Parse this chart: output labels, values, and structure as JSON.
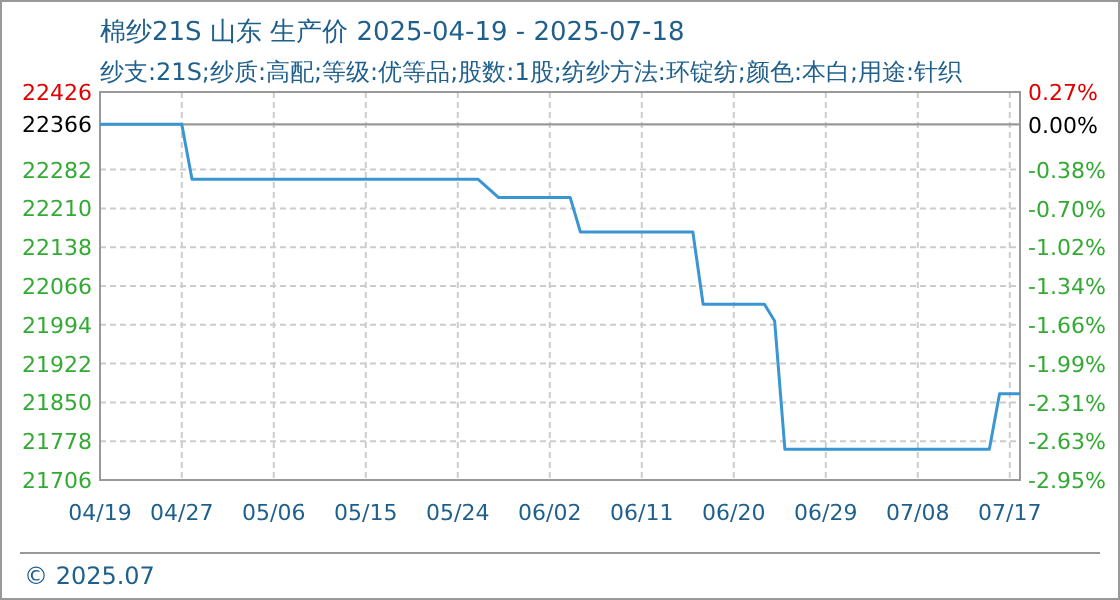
{
  "chart_data": {
    "type": "line",
    "title": "棉纱21S 山东 生产价 2025-04-19 - 2025-07-18",
    "subtitle": "纱支:21S;纱质:高配;等级:优等品;股数:1股;纺纱方法:环锭纺;颜色:本白;用途:针织",
    "series": [
      {
        "color": "#3a96d2",
        "x": [
          "2025-04-19",
          "2025-04-27",
          "2025-04-28",
          "2025-05-26",
          "2025-05-28",
          "2025-06-04",
          "2025-06-05",
          "2025-06-16",
          "2025-06-17",
          "2025-06-23",
          "2025-06-24",
          "2025-06-25",
          "2025-07-15",
          "2025-07-16",
          "2025-07-18"
        ],
        "values": [
          22366,
          22366,
          22264,
          22264,
          22230,
          22230,
          22166,
          22166,
          22032,
          22032,
          22001,
          21763,
          21763,
          21866,
          21866
        ]
      }
    ],
    "xlim": [
      "2025-04-19",
      "2025-07-18"
    ],
    "xticks": [
      {
        "value": "2025-04-19",
        "label": "04/19"
      },
      {
        "value": "2025-04-27",
        "label": "04/27"
      },
      {
        "value": "2025-05-06",
        "label": "05/06"
      },
      {
        "value": "2025-05-15",
        "label": "05/15"
      },
      {
        "value": "2025-05-24",
        "label": "05/24"
      },
      {
        "value": "2025-06-02",
        "label": "06/02"
      },
      {
        "value": "2025-06-11",
        "label": "06/11"
      },
      {
        "value": "2025-06-20",
        "label": "06/20"
      },
      {
        "value": "2025-06-29",
        "label": "06/29"
      },
      {
        "value": "2025-07-08",
        "label": "07/08"
      },
      {
        "value": "2025-07-17",
        "label": "07/17"
      }
    ],
    "ylim": [
      21706,
      22426
    ],
    "yticks": [
      21706,
      21778,
      21850,
      21922,
      21994,
      22066,
      22138,
      22210,
      22282,
      22366,
      22426
    ],
    "y2lim": [
      -2.95,
      0.27
    ],
    "y2ticks": [
      {
        "value": -2.95,
        "label": "-2.95%"
      },
      {
        "value": -2.63,
        "label": "-2.63%"
      },
      {
        "value": -2.31,
        "label": "-2.31%"
      },
      {
        "value": -1.99,
        "label": "-1.99%"
      },
      {
        "value": -1.66,
        "label": "-1.66%"
      },
      {
        "value": -1.34,
        "label": "-1.34%"
      },
      {
        "value": -1.02,
        "label": "-1.02%"
      },
      {
        "value": -0.7,
        "label": "-0.70%"
      },
      {
        "value": -0.38,
        "label": "-0.38%"
      },
      {
        "value": 0,
        "label": "0.00%"
      },
      {
        "value": 0.27,
        "label": "0.27%"
      }
    ],
    "grid": true,
    "ref_lines": [
      {
        "axis": "y",
        "value": 22366,
        "color": "#999999"
      }
    ],
    "annotations": [
      "© 2025.07"
    ]
  }
}
